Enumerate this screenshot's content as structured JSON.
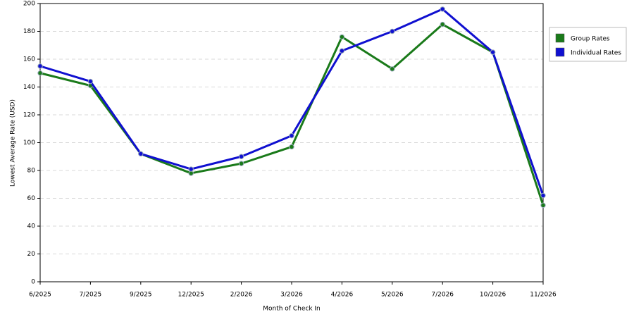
{
  "chart_data": {
    "type": "line",
    "x_label": "Month of Check In",
    "y_label": "Lowest Average Rate (USD)",
    "categories": [
      "6/2025",
      "7/2025",
      "9/2025",
      "12/2025",
      "2/2026",
      "3/2026",
      "4/2026",
      "5/2026",
      "7/2026",
      "10/2026",
      "11/2026"
    ],
    "series": [
      {
        "name": "Group Rates",
        "color": "#1a7a1a",
        "values": [
          150,
          141,
          92,
          78,
          85,
          97,
          176,
          153,
          185,
          165,
          55
        ]
      },
      {
        "name": "Individual Rates",
        "color": "#1010d0",
        "values": [
          155,
          144,
          92,
          81,
          90,
          105,
          166,
          180,
          196,
          165,
          62
        ]
      }
    ],
    "ylim": [
      0,
      200
    ],
    "yticks": [
      0,
      20,
      40,
      60,
      80,
      100,
      120,
      140,
      160,
      180,
      200
    ],
    "grid": true,
    "legend": "right"
  }
}
